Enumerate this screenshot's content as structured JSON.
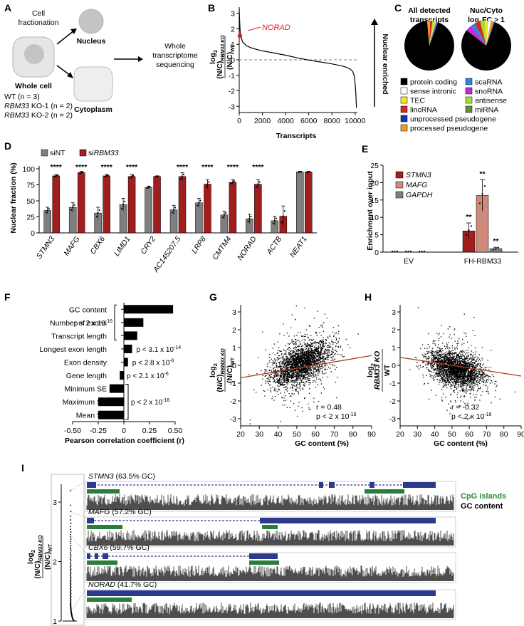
{
  "panel_letters": [
    "A",
    "B",
    "C",
    "D",
    "E",
    "F",
    "G",
    "H",
    "I"
  ],
  "panelA": {
    "fractionation": [
      "Cell",
      "fractionation"
    ],
    "nucleus": "Nucleus",
    "cytoplasm": "Cytoplasm",
    "whole_cell": "Whole cell",
    "sequencing": [
      "Whole",
      "transcriptome",
      "sequencing"
    ],
    "samples": [
      {
        "italic": "",
        "rest": "WT (n = 3)"
      },
      {
        "italic": "RBM33",
        "rest": " KO-1 (n = 2)"
      },
      {
        "italic": "RBM33",
        "rest": " KO-2 (n = 2)"
      }
    ]
  },
  "panelB": {
    "ylabel_main": "log",
    "ylabel_ratio": "(N/C)",
    "ylabel_ko": "RBM33 KO",
    "ylabel_wt": "WT",
    "xlabel": "Transcripts",
    "annotation": "NORAD",
    "right_label": "Nuclear enriched",
    "chart_data": {
      "type": "line",
      "x_ticks": [
        0,
        2000,
        4000,
        6000,
        8000,
        10000
      ],
      "y_ticks": [
        -3,
        -2,
        -1,
        0,
        1,
        2,
        3
      ],
      "xlim": [
        0,
        10200
      ],
      "ylim": [
        -3.4,
        3.4
      ],
      "x": [
        0,
        30,
        100,
        300,
        600,
        1000,
        1500,
        2000,
        3000,
        4000,
        5000,
        6000,
        7000,
        8000,
        9000,
        9500,
        9800,
        9950,
        10050,
        10120
      ],
      "y": [
        3.3,
        2.6,
        1.6,
        1.15,
        0.92,
        0.78,
        0.67,
        0.58,
        0.44,
        0.3,
        0.13,
        -0.02,
        -0.14,
        -0.26,
        -0.42,
        -0.55,
        -0.75,
        -1.1,
        -2.0,
        -3.1
      ],
      "highlight": {
        "label": "NORAD",
        "x": 60,
        "y": 1.55
      }
    }
  },
  "panelC": {
    "title_left": [
      "All detected",
      "transcripts"
    ],
    "title_right": [
      "Nuc/Cyto",
      "log2FC > 1"
    ],
    "legend": [
      {
        "label": "protein coding",
        "color": "#000000"
      },
      {
        "label": "scaRNA",
        "color": "#2e86de"
      },
      {
        "label": "sense intronic",
        "color": "#ffffff"
      },
      {
        "label": "snoRNA",
        "color": "#c02bd6"
      },
      {
        "label": "TEC",
        "color": "#f5e71b"
      },
      {
        "label": "antisense",
        "color": "#a3e02a"
      },
      {
        "label": "lincRNA",
        "color": "#d8281d"
      },
      {
        "label": "miRNA",
        "color": "#5b8f3a"
      },
      {
        "label": "unprocessed pseudogene",
        "color": "#1537b5"
      },
      {
        "label": "processed pseudogene",
        "color": "#f49a1e"
      }
    ],
    "chart_data": [
      {
        "type": "pie",
        "slices": [
          {
            "label": "protein coding",
            "value": 93.0
          },
          {
            "label": "processed pseudogene",
            "value": 2.0
          },
          {
            "label": "lincRNA",
            "value": 1.5
          },
          {
            "label": "antisense",
            "value": 1.2
          },
          {
            "label": "TEC",
            "value": 0.8
          },
          {
            "label": "sense intronic",
            "value": 0.5
          },
          {
            "label": "unprocessed pseudogene",
            "value": 0.5
          },
          {
            "label": "snoRNA",
            "value": 0.3
          },
          {
            "label": "scaRNA",
            "value": 0.2
          }
        ]
      },
      {
        "type": "pie",
        "slices": [
          {
            "label": "protein coding",
            "value": 80.0
          },
          {
            "label": "snoRNA",
            "value": 4.0
          },
          {
            "label": "scaRNA",
            "value": 3.0
          },
          {
            "label": "lincRNA",
            "value": 3.5
          },
          {
            "label": "antisense",
            "value": 3.0
          },
          {
            "label": "TEC",
            "value": 2.0
          },
          {
            "label": "sense intronic",
            "value": 2.0
          },
          {
            "label": "processed pseudogene",
            "value": 1.5
          },
          {
            "label": "miRNA",
            "value": 0.5
          },
          {
            "label": "unprocessed pseudogene",
            "value": 0.5
          }
        ]
      }
    ]
  },
  "panelD": {
    "legend": [
      {
        "pre": "si",
        "name": "NT",
        "color": "#7f7f7f"
      },
      {
        "pre": "si",
        "name": "RBM33",
        "color": "#a11e1e"
      }
    ],
    "ylabel": "Nuclear fraction (%)",
    "stars": "****",
    "chart_data": {
      "type": "bar",
      "categories": [
        "STMN3",
        "MAFG",
        "CBX6",
        "LIMD1",
        "CRY2",
        "AC145207.5",
        "LRP8",
        "CMTM4",
        "NORAD",
        "ACTB",
        "NEAT1"
      ],
      "italic_categories": true,
      "series": [
        {
          "name": "siNT",
          "values": [
            35,
            40,
            31,
            44,
            71,
            36,
            47,
            28,
            22,
            19,
            95
          ],
          "errors": [
            5,
            7,
            9,
            10,
            2,
            7,
            7,
            6,
            7,
            7,
            1
          ]
        },
        {
          "name": "siRBM33",
          "values": [
            89,
            94,
            89,
            88,
            88,
            88,
            76,
            79,
            76,
            26,
            95
          ],
          "errors": [
            2,
            2,
            2,
            3,
            1,
            6,
            7,
            4,
            7,
            16,
            1
          ]
        }
      ],
      "significant": [
        true,
        true,
        true,
        true,
        false,
        true,
        true,
        true,
        true,
        false,
        false
      ],
      "ylim": [
        0,
        100
      ],
      "y_ticks": [
        0,
        25,
        50,
        75,
        100
      ]
    }
  },
  "panelE": {
    "ylabel": "Enrichment over input",
    "legend": [
      {
        "label": "STMN3",
        "color": "#a11e1e"
      },
      {
        "label": "MAFG",
        "color": "#d08a7b"
      },
      {
        "label": "GAPDH",
        "color": "#7f7f7f"
      }
    ],
    "stars": "**",
    "chart_data": {
      "type": "bar",
      "categories": [
        "EV",
        "FH-RBM33"
      ],
      "series": [
        {
          "name": "STMN3",
          "values": [
            0,
            6.1
          ],
          "errors": [
            0,
            2.3
          ]
        },
        {
          "name": "MAFG",
          "values": [
            0,
            16.3
          ],
          "errors": [
            0,
            4.5
          ]
        },
        {
          "name": "GAPDH",
          "values": [
            0,
            1.0
          ],
          "errors": [
            0,
            0.4
          ]
        }
      ],
      "ylim": [
        0,
        25
      ],
      "y_ticks": [
        0,
        5,
        10,
        15,
        20,
        25
      ]
    }
  },
  "panelF": {
    "xlabel": "Pearson correlation coefficient (r)",
    "brackets": [
      {
        "text": "p < 2 x 10",
        "exp": "-16"
      },
      {
        "text": "p < 3.1 x 10",
        "exp": "-14"
      },
      {
        "text": "p < 2.8 x 10",
        "exp": "-6"
      },
      {
        "text": "p < 2.1 x 10",
        "exp": "-6"
      },
      {
        "text": "p < 2 x 10",
        "exp": "-16"
      }
    ],
    "chart_data": {
      "type": "bar",
      "orientation": "horizontal",
      "categories": [
        "GC content",
        "Number of exons",
        "Transcript length",
        "Longest exon length",
        "Exon density",
        "Gene length",
        "Minimum SE",
        "Maximum SE",
        "Mean SE"
      ],
      "values": [
        0.48,
        0.19,
        0.13,
        0.08,
        0.04,
        -0.04,
        -0.14,
        -0.25,
        -0.25
      ],
      "xlim": [
        -0.5,
        0.5
      ],
      "x_ticks": [
        "-0.50",
        "-0.25",
        "0",
        "0.25",
        "0.50"
      ]
    }
  },
  "panelG": {
    "xlabel": "GC content (%)",
    "ylabel_main": "log",
    "ylabel_ratio": "(N/C)",
    "ylabel_ko": "RBM33 KO",
    "ylabel_wt": "WT",
    "r_text": "r = 0.48",
    "p_text": "p < 2 x 10",
    "p_exp": "-16",
    "chart_data": {
      "type": "scatter",
      "x_ticks": [
        20,
        30,
        40,
        50,
        60,
        70,
        80,
        90
      ],
      "y_ticks": [
        -3,
        -2,
        -1,
        0,
        1,
        2,
        3
      ],
      "xlim": [
        20,
        90
      ],
      "ylim": [
        -3.4,
        3.4
      ],
      "r": 0.48,
      "cloud": {
        "x_center": 52,
        "x_spread": 8,
        "y_center": 0.1,
        "y_spread": 0.5
      },
      "fit": {
        "x": [
          20,
          90
        ],
        "y": [
          -0.7,
          0.55
        ]
      }
    }
  },
  "panelH": {
    "xlabel": "GC content (%)",
    "ylabel_main": "log",
    "ylabel_ko": "RBM33 KO",
    "ylabel_wt": "WT",
    "r_text": "r = -0.32",
    "p_text": "p < 2 x 10",
    "p_exp": "-16",
    "chart_data": {
      "type": "scatter",
      "x_ticks": [
        20,
        30,
        40,
        50,
        60,
        70,
        80,
        90
      ],
      "y_ticks": [
        -3,
        -2,
        -1,
        0,
        1,
        2,
        3
      ],
      "xlim": [
        20,
        90
      ],
      "ylim": [
        -3.4,
        3.4
      ],
      "r": -0.32,
      "cloud": {
        "x_center": 52,
        "x_spread": 8,
        "y_center": -0.2,
        "y_spread": 0.45
      },
      "fit": {
        "x": [
          20,
          90
        ],
        "y": [
          0.45,
          -0.6
        ]
      }
    }
  },
  "panelI": {
    "ylabel_main": "log",
    "ylabel_ratio": "(N/C)",
    "ylabel_ko": "RBM33 KO",
    "ylabel_wt": "WT",
    "y_ticks": [
      1,
      2,
      3
    ],
    "cpg_label": "CpG islands",
    "gc_label": "GC content",
    "tracks": [
      {
        "gene": "STMN3",
        "gc": " (63.5% GC)"
      },
      {
        "gene": "MAFG",
        "gc": " (57.2% GC)"
      },
      {
        "gene": "CBX6",
        "gc": " (59.7% GC)"
      },
      {
        "gene": "NORAD",
        "gc": " (41.7% GC)"
      }
    ]
  }
}
